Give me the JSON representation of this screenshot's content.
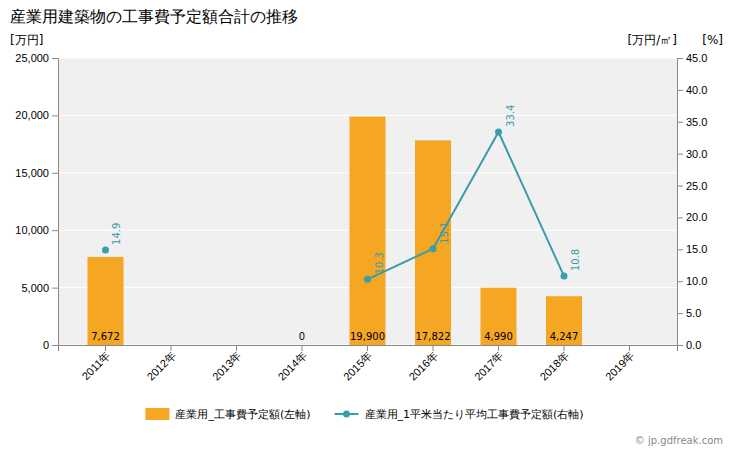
{
  "chart_data": {
    "type": "bar",
    "title": "産業用建築物の工事費予定額合計の推移",
    "ylabel": "[万円]",
    "y2label": "[万円/㎡]",
    "annotations": [
      "[%]",
      "© jp.gdfreak.com"
    ],
    "categories": [
      "2011年",
      "2012年",
      "2013年",
      "2014年",
      "2015年",
      "2016年",
      "2017年",
      "2018年",
      "2019年"
    ],
    "series": [
      {
        "name": "産業用_工事費予定額(左軸)",
        "type": "bar",
        "color": "#f5a623",
        "values": [
          7672,
          null,
          null,
          0,
          19900,
          17822,
          4990,
          4247,
          null
        ],
        "value_labels": [
          "7,672",
          null,
          null,
          "0",
          "19,900",
          "17,822",
          "4,990",
          "4,247",
          null
        ]
      },
      {
        "name": "産業用_1平米当たり平均工事費予定額(右軸)",
        "type": "line",
        "axis": "y2",
        "color": "#3a9daa",
        "marker": "circle",
        "values": [
          14.9,
          null,
          null,
          null,
          10.3,
          15.1,
          33.4,
          10.8,
          null
        ]
      }
    ],
    "ylim": [
      0,
      25000
    ],
    "yticks": [
      0,
      {
        "value": 5000,
        "label": "5,000"
      },
      {
        "value": 10000,
        "label": "10,000"
      },
      {
        "value": 15000,
        "label": "15,000"
      },
      {
        "value": 20000,
        "label": "20,000"
      },
      {
        "value": 25000,
        "label": "25,000"
      }
    ],
    "y2lim": [
      0,
      45.0
    ],
    "y2ticks": [
      {
        "value": 0,
        "label": "0.0"
      },
      {
        "value": 5,
        "label": "5.0"
      },
      {
        "value": 10,
        "label": "10.0"
      },
      {
        "value": 15,
        "label": "15.0"
      },
      {
        "value": 20,
        "label": "20.0"
      },
      {
        "value": 25,
        "label": "25.0"
      },
      {
        "value": 30,
        "label": "30.0"
      },
      {
        "value": 35,
        "label": "35.0"
      },
      {
        "value": 40,
        "label": "40.0"
      },
      {
        "value": 45,
        "label": "45.0"
      }
    ],
    "grid": true,
    "legend": "bottom",
    "data_labels": true
  }
}
